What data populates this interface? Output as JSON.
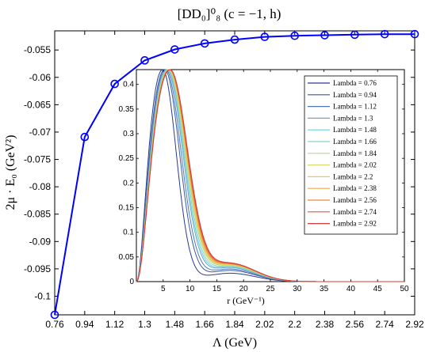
{
  "chart_data": [
    {
      "type": "line",
      "title": "[DD₀]⁰₈ (c = −1, h)",
      "xlabel": "Λ (GeV)",
      "ylabel": "2μ · E₀ (GeV²)",
      "x": [
        0.76,
        0.94,
        1.12,
        1.3,
        1.48,
        1.66,
        1.84,
        2.02,
        2.2,
        2.38,
        2.56,
        2.74,
        2.92
      ],
      "x_tick_labels": [
        "0.76",
        "0.94",
        "1.12",
        "1.3",
        "1.48",
        "1.66",
        "1.84",
        "2.02",
        "2.2",
        "2.38",
        "2.56",
        "2.74",
        "2.92"
      ],
      "series": [
        {
          "values": [
            -0.1034,
            -0.0709,
            -0.0612,
            -0.0569,
            -0.0549,
            -0.0538,
            -0.0531,
            -0.0526,
            -0.0524,
            -0.0523,
            -0.0522,
            -0.0521,
            -0.0521
          ],
          "color": "#0000ff",
          "marker": "open-circle"
        }
      ],
      "xlim": [
        0.76,
        2.92
      ],
      "ylim": [
        -0.1034,
        -0.0515
      ],
      "y_ticks": [
        -0.1,
        -0.095,
        -0.09,
        -0.085,
        -0.08,
        -0.075,
        -0.07,
        -0.065,
        -0.06,
        -0.055
      ],
      "y_tick_labels": [
        "-0.1",
        "-0.095",
        "-0.09",
        "-0.085",
        "-0.08",
        "-0.075",
        "-0.07",
        "-0.065",
        "-0.06",
        "-0.055"
      ],
      "grid": false
    },
    {
      "type": "line",
      "xlabel": "r (GeV⁻¹)",
      "xlim": [
        0,
        50
      ],
      "ylim": [
        0,
        0.43
      ],
      "x_ticks": [
        5,
        10,
        15,
        20,
        25,
        30,
        35,
        40,
        45,
        50
      ],
      "y_ticks": [
        0.05,
        0.1,
        0.15,
        0.2,
        0.25,
        0.3,
        0.35,
        0.4
      ],
      "y_tick_labels": [
        "0.05",
        "0.1",
        "0.15",
        "0.2",
        "0.25",
        "0.3",
        "0.35",
        "0.4"
      ],
      "legend_position": "top-right",
      "peak_height": 0.43,
      "series": [
        {
          "name": "Lambda = 0.76",
          "color": "#283c8e",
          "peak_r": 4.9
        },
        {
          "name": "Lambda = 0.94",
          "color": "#3a5aa6",
          "peak_r": 5.3
        },
        {
          "name": "Lambda = 1.12",
          "color": "#5078b8",
          "peak_r": 5.5
        },
        {
          "name": "Lambda = 1.3",
          "color": "#6aa6d2",
          "peak_r": 5.7
        },
        {
          "name": "Lambda = 1.48",
          "color": "#6fd0dc",
          "peak_r": 5.8
        },
        {
          "name": "Lambda = 1.66",
          "color": "#8ad8b8",
          "peak_r": 5.9
        },
        {
          "name": "Lambda = 1.84",
          "color": "#b4d88c",
          "peak_r": 6.0
        },
        {
          "name": "Lambda = 2.02",
          "color": "#d8d870",
          "peak_r": 6.05
        },
        {
          "name": "Lambda = 2.2",
          "color": "#f0c850",
          "peak_r": 6.1
        },
        {
          "name": "Lambda = 2.38",
          "color": "#f0a848",
          "peak_r": 6.15
        },
        {
          "name": "Lambda = 2.56",
          "color": "#e88a40",
          "peak_r": 6.2
        },
        {
          "name": "Lambda = 2.74",
          "color": "#e05a36",
          "peak_r": 6.25
        },
        {
          "name": "Lambda = 2.92",
          "color": "#d43a3a",
          "peak_r": 6.3
        }
      ]
    }
  ]
}
